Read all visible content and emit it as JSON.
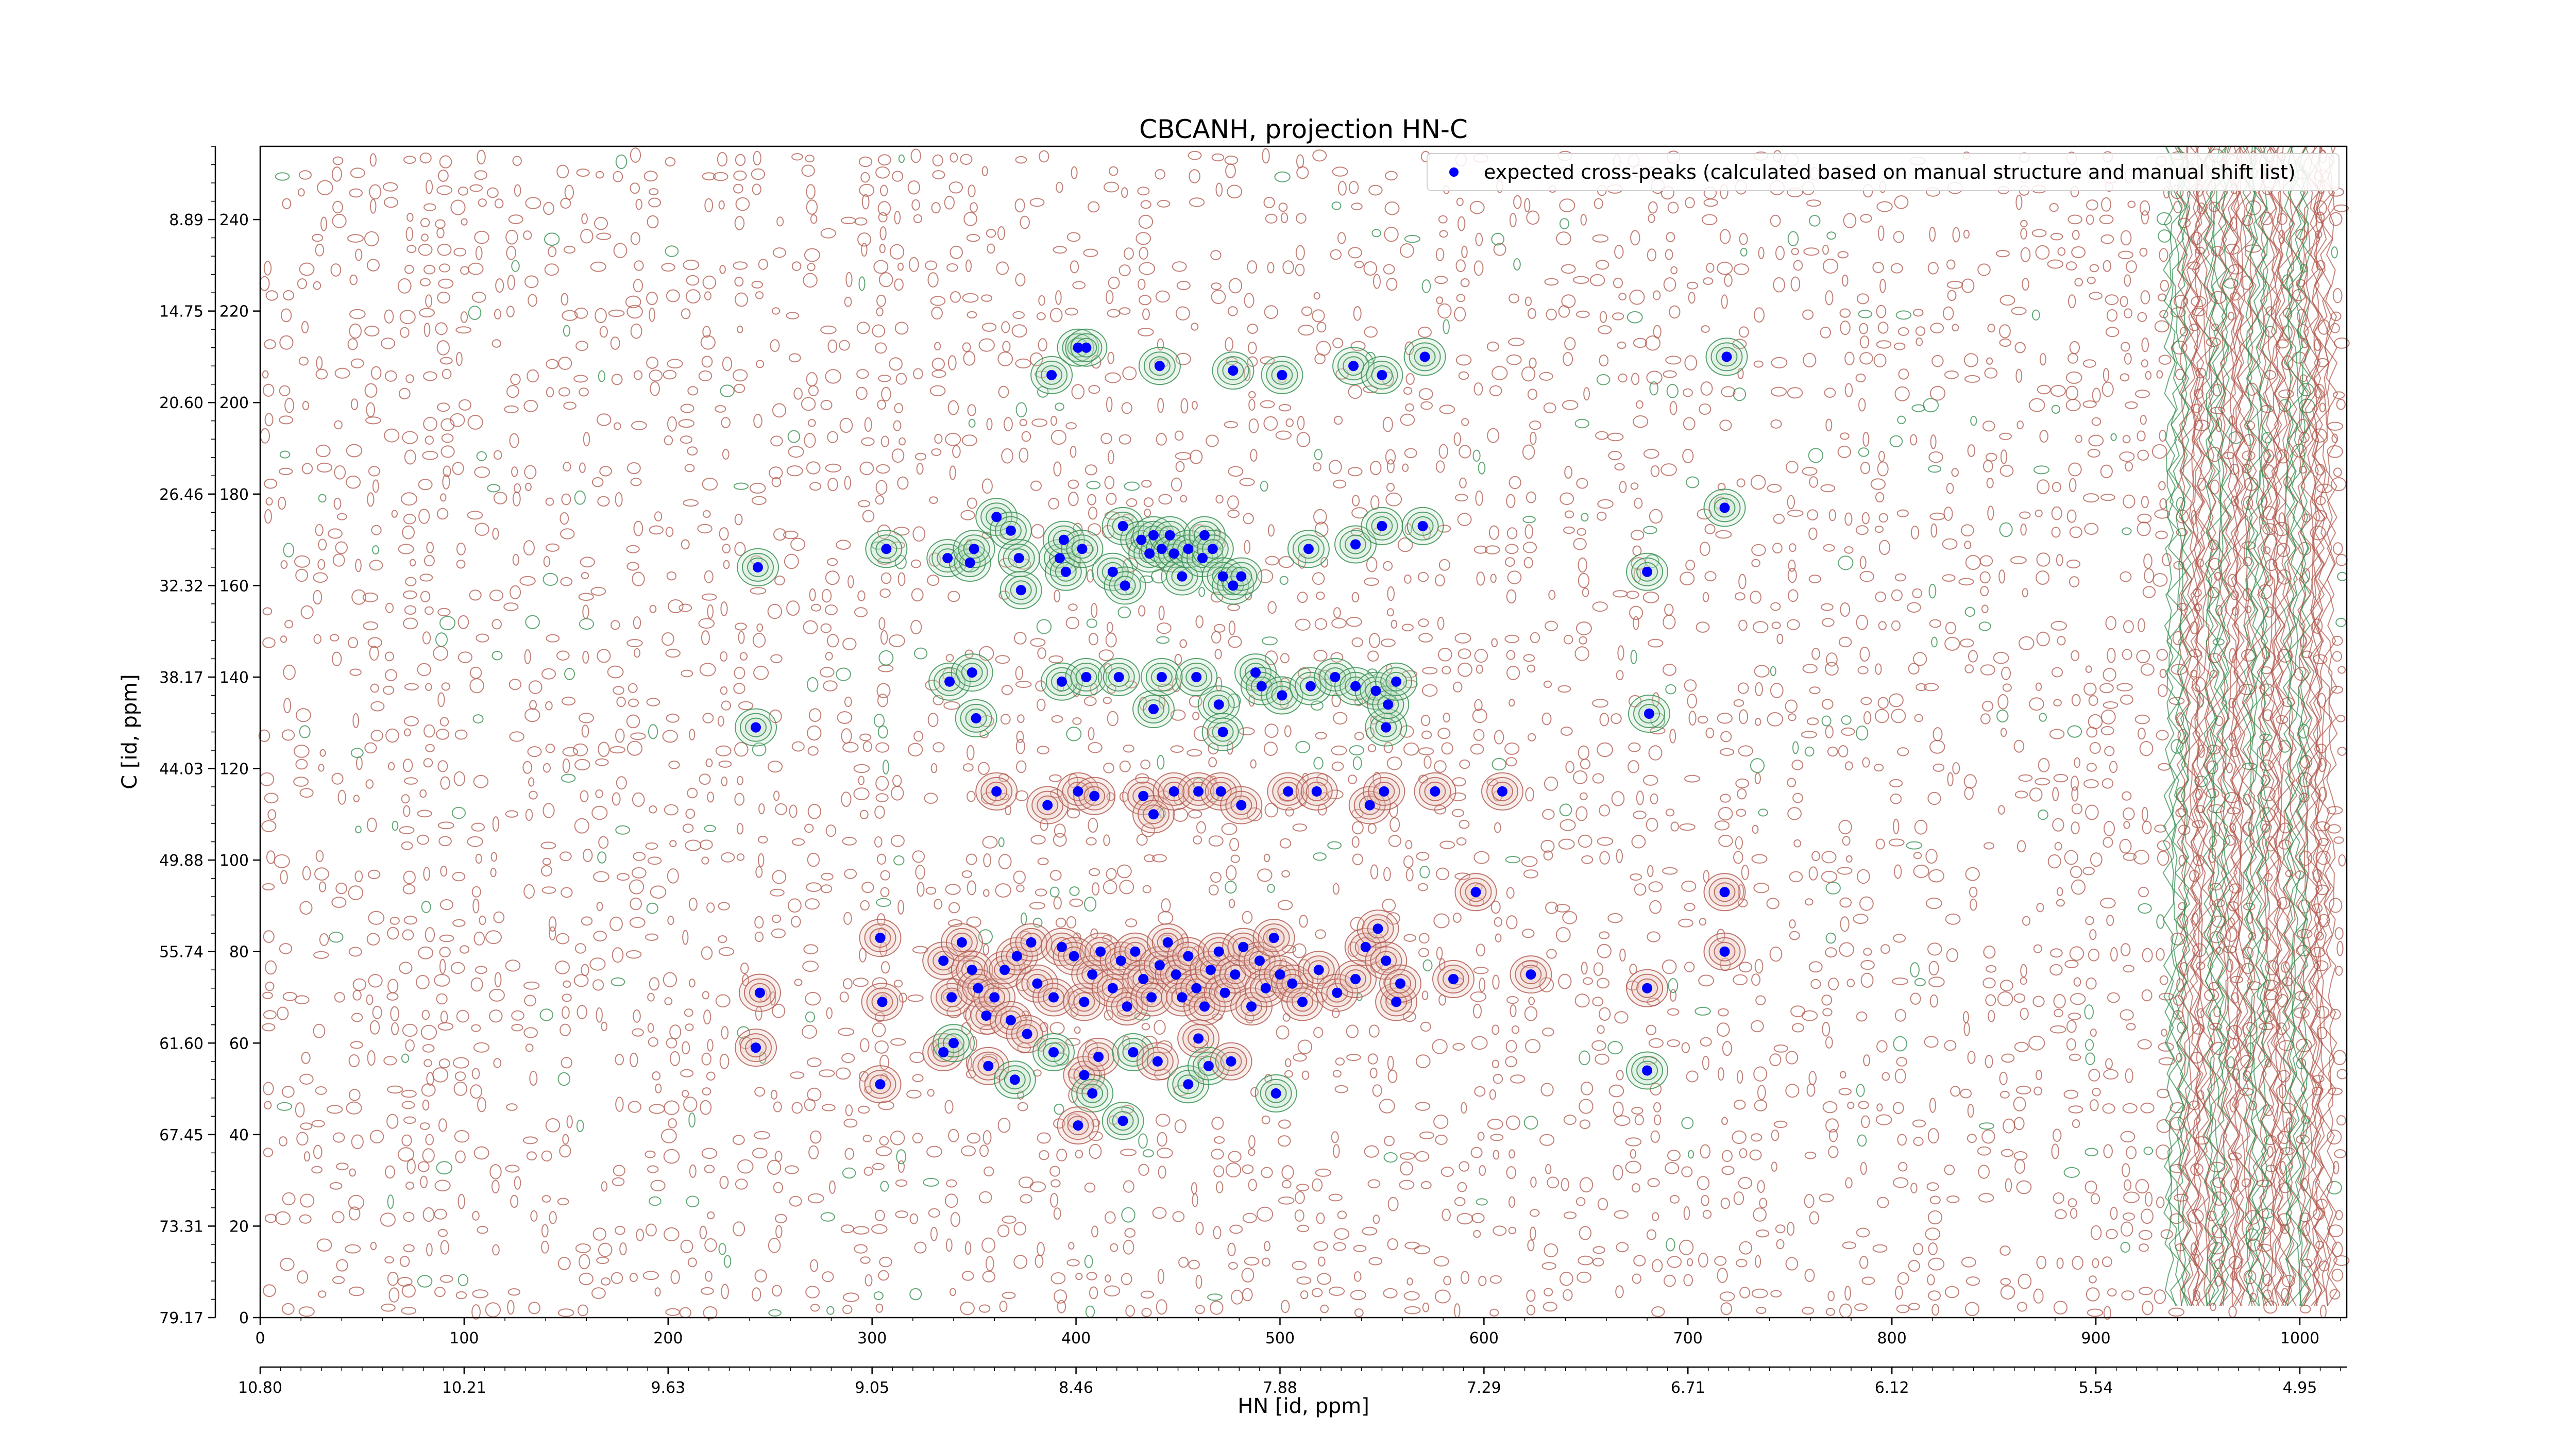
{
  "chart_data": {
    "type": "scatter",
    "title": "CBCANH, projection HN-C",
    "xlabel": "HN [id, ppm]",
    "ylabel": "C [id, ppm]",
    "xlim": [
      0,
      1023
    ],
    "ylim": [
      0,
      256
    ],
    "x_index_ticks": [
      "0",
      "100",
      "200",
      "300",
      "400",
      "500",
      "600",
      "700",
      "800",
      "900",
      "1000"
    ],
    "x_ppm_ticks": [
      "10.80",
      "10.21",
      "9.63",
      "9.05",
      "8.46",
      "7.88",
      "7.29",
      "6.71",
      "6.12",
      "5.54",
      "4.95"
    ],
    "y_index_ticks": [
      "0",
      "20",
      "40",
      "60",
      "80",
      "100",
      "120",
      "140",
      "160",
      "180",
      "200",
      "220",
      "240"
    ],
    "y_ppm_ticks": [
      "79.17",
      "73.31",
      "67.45",
      "61.60",
      "55.74",
      "49.88",
      "44.03",
      "38.17",
      "32.32",
      "26.46",
      "20.60",
      "14.75",
      "8.89"
    ],
    "legend_position": "top-right",
    "series": [
      {
        "name": "expected cross-peaks (calculated based on manual structure and manual shift list)",
        "color": "#0000ff",
        "marker": "circle",
        "points": [
          [
            388,
            206
          ],
          [
            401,
            212
          ],
          [
            405,
            212
          ],
          [
            441,
            208
          ],
          [
            477,
            207
          ],
          [
            501,
            206
          ],
          [
            536,
            208
          ],
          [
            550,
            206
          ],
          [
            571,
            210
          ],
          [
            719,
            210
          ],
          [
            307,
            168
          ],
          [
            337,
            166
          ],
          [
            348,
            165
          ],
          [
            350,
            168
          ],
          [
            361,
            175
          ],
          [
            368,
            172
          ],
          [
            372,
            166
          ],
          [
            373,
            159
          ],
          [
            392,
            166
          ],
          [
            394,
            170
          ],
          [
            395,
            163
          ],
          [
            403,
            168
          ],
          [
            418,
            163
          ],
          [
            424,
            160
          ],
          [
            423,
            173
          ],
          [
            432,
            170
          ],
          [
            436,
            167
          ],
          [
            438,
            171
          ],
          [
            442,
            168
          ],
          [
            446,
            171
          ],
          [
            448,
            167
          ],
          [
            452,
            162
          ],
          [
            455,
            168
          ],
          [
            462,
            166
          ],
          [
            463,
            171
          ],
          [
            467,
            168
          ],
          [
            472,
            162
          ],
          [
            477,
            160
          ],
          [
            481,
            162
          ],
          [
            514,
            168
          ],
          [
            537,
            169
          ],
          [
            550,
            173
          ],
          [
            570,
            173
          ],
          [
            718,
            177
          ],
          [
            680,
            163
          ],
          [
            244,
            164
          ],
          [
            338,
            139
          ],
          [
            349,
            141
          ],
          [
            351,
            131
          ],
          [
            393,
            139
          ],
          [
            405,
            140
          ],
          [
            421,
            140
          ],
          [
            438,
            133
          ],
          [
            442,
            140
          ],
          [
            459,
            140
          ],
          [
            470,
            134
          ],
          [
            472,
            128
          ],
          [
            488,
            141
          ],
          [
            491,
            138
          ],
          [
            501,
            136
          ],
          [
            515,
            138
          ],
          [
            527,
            140
          ],
          [
            537,
            138
          ],
          [
            547,
            137
          ],
          [
            552,
            129
          ],
          [
            553,
            134
          ],
          [
            557,
            139
          ],
          [
            681,
            132
          ],
          [
            243,
            129
          ],
          [
            361,
            115
          ],
          [
            386,
            112
          ],
          [
            401,
            115
          ],
          [
            409,
            114
          ],
          [
            433,
            114
          ],
          [
            438,
            110
          ],
          [
            448,
            115
          ],
          [
            460,
            115
          ],
          [
            471,
            115
          ],
          [
            481,
            112
          ],
          [
            504,
            115
          ],
          [
            518,
            115
          ],
          [
            544,
            112
          ],
          [
            551,
            115
          ],
          [
            576,
            115
          ],
          [
            609,
            115
          ],
          [
            304,
            83
          ],
          [
            305,
            69
          ],
          [
            335,
            78
          ],
          [
            339,
            70
          ],
          [
            344,
            82
          ],
          [
            349,
            76
          ],
          [
            352,
            72
          ],
          [
            356,
            66
          ],
          [
            360,
            70
          ],
          [
            365,
            76
          ],
          [
            368,
            65
          ],
          [
            371,
            79
          ],
          [
            378,
            82
          ],
          [
            381,
            73
          ],
          [
            389,
            70
          ],
          [
            393,
            81
          ],
          [
            399,
            79
          ],
          [
            404,
            69
          ],
          [
            408,
            75
          ],
          [
            412,
            80
          ],
          [
            418,
            72
          ],
          [
            422,
            78
          ],
          [
            425,
            68
          ],
          [
            429,
            80
          ],
          [
            433,
            74
          ],
          [
            437,
            70
          ],
          [
            441,
            77
          ],
          [
            445,
            82
          ],
          [
            449,
            75
          ],
          [
            452,
            70
          ],
          [
            455,
            79
          ],
          [
            459,
            72
          ],
          [
            463,
            68
          ],
          [
            466,
            76
          ],
          [
            470,
            80
          ],
          [
            473,
            71
          ],
          [
            478,
            75
          ],
          [
            482,
            81
          ],
          [
            486,
            68
          ],
          [
            490,
            78
          ],
          [
            493,
            72
          ],
          [
            497,
            83
          ],
          [
            500,
            75
          ],
          [
            506,
            73
          ],
          [
            511,
            69
          ],
          [
            519,
            76
          ],
          [
            528,
            71
          ],
          [
            537,
            74
          ],
          [
            542,
            81
          ],
          [
            548,
            85
          ],
          [
            552,
            78
          ],
          [
            557,
            69
          ],
          [
            559,
            73
          ],
          [
            585,
            74
          ],
          [
            596,
            93
          ],
          [
            623,
            75
          ],
          [
            680,
            72
          ],
          [
            718,
            80
          ],
          [
            718,
            93
          ],
          [
            245,
            71
          ],
          [
            335,
            58
          ],
          [
            340,
            60
          ],
          [
            357,
            55
          ],
          [
            370,
            52
          ],
          [
            376,
            62
          ],
          [
            389,
            58
          ],
          [
            404,
            53
          ],
          [
            408,
            49
          ],
          [
            411,
            57
          ],
          [
            428,
            58
          ],
          [
            440,
            56
          ],
          [
            455,
            51
          ],
          [
            460,
            61
          ],
          [
            465,
            55
          ],
          [
            476,
            56
          ],
          [
            498,
            49
          ],
          [
            243,
            59
          ],
          [
            680,
            54
          ],
          [
            401,
            42
          ],
          [
            423,
            43
          ],
          [
            304,
            51
          ]
        ]
      }
    ]
  },
  "figure": {
    "background": "#ffffff",
    "positive_contour_color": "#b0554a",
    "negative_contour_color": "#2e8b4a",
    "marker_color": "#0000ff"
  }
}
